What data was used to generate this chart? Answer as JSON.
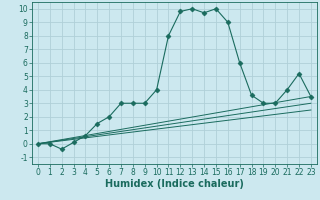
{
  "xlabel": "Humidex (Indice chaleur)",
  "background_color": "#cce8ef",
  "grid_color": "#b0d0d8",
  "line_color": "#1a6b5e",
  "xlim": [
    -0.5,
    23.5
  ],
  "ylim": [
    -1.5,
    10.5
  ],
  "xticks": [
    0,
    1,
    2,
    3,
    4,
    5,
    6,
    7,
    8,
    9,
    10,
    11,
    12,
    13,
    14,
    15,
    16,
    17,
    18,
    19,
    20,
    21,
    22,
    23
  ],
  "yticks": [
    -1,
    0,
    1,
    2,
    3,
    4,
    5,
    6,
    7,
    8,
    9,
    10
  ],
  "series": [
    {
      "x": [
        0,
        1,
        2,
        3,
        4,
        5,
        6,
        7,
        8,
        9,
        10,
        11,
        12,
        13,
        14,
        15,
        16,
        17,
        18,
        19,
        20,
        21,
        22,
        23
      ],
      "y": [
        0,
        0,
        -0.4,
        0.1,
        0.6,
        1.5,
        2.0,
        3.0,
        3.0,
        3.0,
        4.0,
        8.0,
        9.8,
        10.0,
        9.7,
        10.0,
        9.0,
        6.0,
        3.6,
        3.0,
        3.0,
        4.0,
        5.2,
        3.5
      ],
      "marker": "D",
      "markersize": 2.5
    },
    {
      "x": [
        0,
        23
      ],
      "y": [
        0,
        3.5
      ],
      "marker": null
    },
    {
      "x": [
        0,
        23
      ],
      "y": [
        0,
        3.0
      ],
      "marker": null
    },
    {
      "x": [
        0,
        23
      ],
      "y": [
        0,
        2.5
      ],
      "marker": null
    }
  ],
  "tick_fontsize": 5.5,
  "label_fontsize": 7.0
}
